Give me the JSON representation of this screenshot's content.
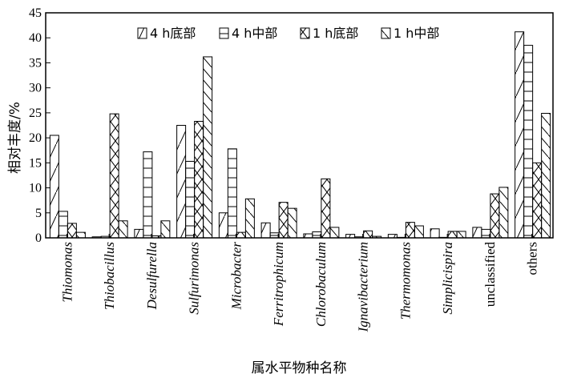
{
  "chart_data": {
    "type": "bar",
    "title": "",
    "xlabel": "属水平物种名称",
    "ylabel": "相对丰度/%",
    "ylim": [
      0,
      45
    ],
    "yticks": [
      0,
      5,
      10,
      15,
      20,
      25,
      30,
      35,
      40,
      45
    ],
    "grid": false,
    "legend_position": "top",
    "categories": [
      "Thiomonas",
      "Thiobacillus",
      "Desulfurella",
      "Sulfurimonas",
      "Microbacter",
      "Ferritrophicum",
      "Chlorobaculum",
      "Ignavibacterium",
      "Thermomonas",
      "Simplicispira",
      "unclassified",
      "others"
    ],
    "italic_categories": [
      true,
      true,
      true,
      true,
      true,
      true,
      true,
      true,
      true,
      true,
      false,
      false
    ],
    "series": [
      {
        "name": "4 h底部",
        "pattern": "diag-sparse",
        "values": [
          20.5,
          0.2,
          1.7,
          22.5,
          5.0,
          3.0,
          0.8,
          0.7,
          0.7,
          1.8,
          2.1,
          41.2
        ]
      },
      {
        "name": "4 h中部",
        "pattern": "horizontal",
        "values": [
          5.3,
          0.3,
          17.2,
          15.3,
          17.8,
          1.0,
          1.2,
          0.2,
          0.1,
          0.1,
          1.7,
          38.5
        ]
      },
      {
        "name": "1 h底部",
        "pattern": "cross",
        "values": [
          2.9,
          24.8,
          0.4,
          23.3,
          1.1,
          7.1,
          11.8,
          1.4,
          3.1,
          1.3,
          8.8,
          15.0
        ]
      },
      {
        "name": "1 h中部",
        "pattern": "diag-dense",
        "values": [
          1.1,
          3.4,
          3.4,
          36.2,
          7.8,
          5.9,
          2.1,
          0.3,
          2.4,
          1.3,
          10.1,
          24.9
        ]
      }
    ]
  }
}
